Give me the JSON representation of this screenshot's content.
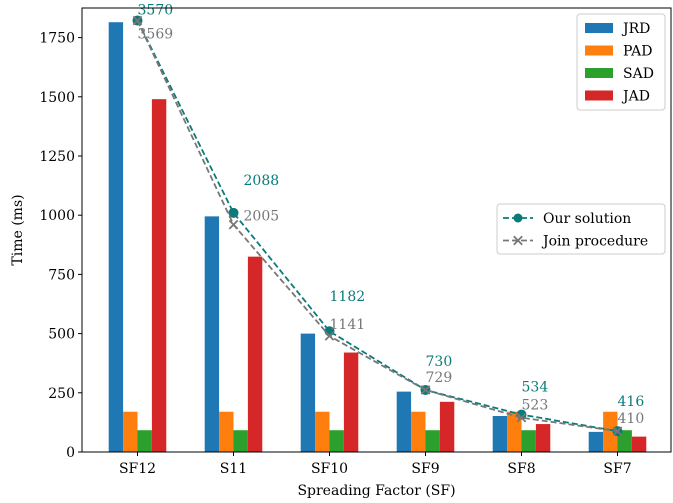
{
  "chart_data": {
    "type": "bar",
    "xlabel": "Spreading Factor (SF)",
    "ylabel": "Time (ms)",
    "ylim": [
      0,
      1875
    ],
    "yticks": [
      0,
      250,
      500,
      750,
      1000,
      1250,
      1500,
      1750
    ],
    "grid": false,
    "categories": [
      "SF12",
      "S11",
      "SF10",
      "SF9",
      "SF8",
      "SF7"
    ],
    "series": [
      {
        "name": "JRD",
        "color": "#1f77b4",
        "values": [
          1815,
          995,
          500,
          255,
          152,
          85
        ]
      },
      {
        "name": "PAD",
        "color": "#ff7f0e",
        "values": [
          170,
          170,
          170,
          170,
          170,
          170
        ]
      },
      {
        "name": "SAD",
        "color": "#2ca02c",
        "values": [
          92,
          92,
          92,
          92,
          92,
          92
        ]
      },
      {
        "name": "JAD",
        "color": "#d62728",
        "values": [
          1490,
          825,
          420,
          212,
          118,
          65
        ]
      }
    ],
    "lines": [
      {
        "name": "Our solution",
        "color": "#0a7a7a",
        "style": "dashed",
        "marker": "circle",
        "values": [
          1822,
          1010,
          510,
          262,
          158,
          88
        ],
        "labels": [
          "3570",
          "2088",
          "1182",
          "730",
          "534",
          "416"
        ]
      },
      {
        "name": "Join procedure",
        "color": "#777777",
        "style": "dashed",
        "marker": "x",
        "values": [
          1822,
          960,
          490,
          262,
          145,
          88
        ],
        "labels": [
          "3569",
          "2005",
          "1141",
          "729",
          "523",
          "410"
        ]
      }
    ],
    "legend_bars_position": "top-right",
    "legend_lines_position": "center-right"
  }
}
